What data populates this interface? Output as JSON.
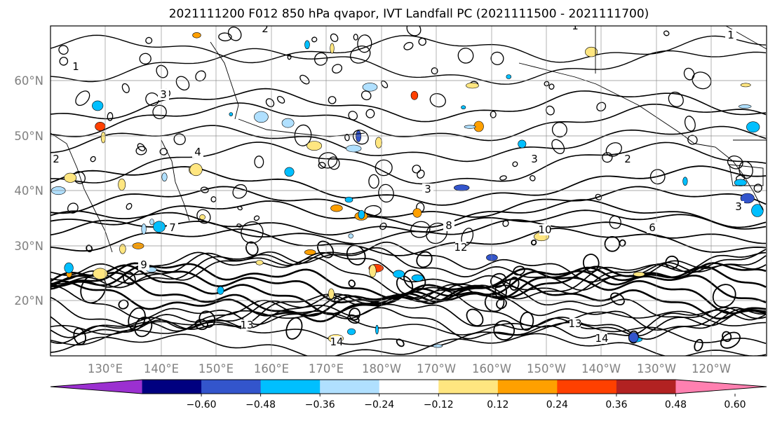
{
  "title": "2021111200 F012 850 hPa qvapor, IVT Landfall PC (2021111500 - 2021111700)",
  "map": {
    "lon_ticks": [
      "130°E",
      "140°E",
      "150°E",
      "160°E",
      "170°E",
      "180°W",
      "170°W",
      "160°W",
      "150°W",
      "140°W",
      "130°W",
      "120°W"
    ],
    "lat_ticks": [
      "60°N",
      "50°N",
      "40°N",
      "30°N",
      "20°N"
    ],
    "gridlines": true
  },
  "contour_labels": [
    "1",
    "1",
    "1",
    "2",
    "2",
    "2",
    "3",
    "3",
    "3",
    "3",
    "4",
    "6",
    "7",
    "8",
    "9",
    "10",
    "12",
    "13",
    "13",
    "14",
    "14"
  ],
  "colorbar": {
    "ticks": [
      "−0.60",
      "−0.48",
      "−0.36",
      "−0.24",
      "−0.12",
      "0.12",
      "0.24",
      "0.36",
      "0.48",
      "0.60"
    ],
    "colors": [
      "#9b30d0",
      "#000080",
      "#3355cc",
      "#00bfff",
      "#b0e0ff",
      "#ffffff",
      "#ffe680",
      "#ffa000",
      "#ff4000",
      "#b22222",
      "#ff80b0"
    ],
    "extend": "both"
  }
}
